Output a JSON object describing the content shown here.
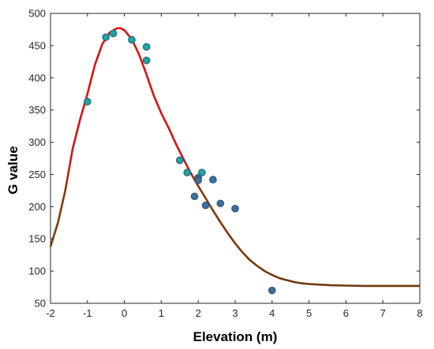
{
  "chart_data": {
    "type": "scatter",
    "xlabel": "Elevation (m)",
    "ylabel": "G value",
    "xlim": [
      -2,
      8
    ],
    "ylim": [
      50,
      500
    ],
    "xticks": [
      -2,
      -1,
      0,
      1,
      2,
      3,
      4,
      5,
      6,
      7,
      8
    ],
    "yticks": [
      50,
      100,
      150,
      200,
      250,
      300,
      350,
      400,
      450,
      500
    ],
    "grid": false,
    "legend": "none",
    "points": [
      {
        "x": -1.0,
        "y": 363
      },
      {
        "x": -0.5,
        "y": 463
      },
      {
        "x": -0.3,
        "y": 469
      },
      {
        "x": 0.2,
        "y": 459
      },
      {
        "x": 0.6,
        "y": 448
      },
      {
        "x": 0.6,
        "y": 427
      },
      {
        "x": 1.5,
        "y": 272
      },
      {
        "x": 1.7,
        "y": 253
      },
      {
        "x": 2.0,
        "y": 245
      },
      {
        "x": 2.0,
        "y": 241
      },
      {
        "x": 2.1,
        "y": 253
      },
      {
        "x": 2.4,
        "y": 242
      },
      {
        "x": 1.9,
        "y": 216
      },
      {
        "x": 2.2,
        "y": 202
      },
      {
        "x": 2.6,
        "y": 205
      },
      {
        "x": 3.0,
        "y": 197
      },
      {
        "x": 4.0,
        "y": 70
      }
    ],
    "fit_curve": {
      "x": [
        -2.0,
        -1.8,
        -1.6,
        -1.4,
        -1.2,
        -1.0,
        -0.8,
        -0.6,
        -0.4,
        -0.2,
        -0.1,
        0.0,
        0.2,
        0.4,
        0.6,
        0.8,
        1.0,
        1.2,
        1.4,
        1.6,
        1.8,
        2.0,
        2.2,
        2.4,
        2.6,
        2.8,
        3.0,
        3.2,
        3.4,
        3.6,
        3.8,
        4.0,
        4.2,
        4.4,
        4.6,
        4.8,
        5.0,
        5.3,
        5.6,
        6.0,
        6.5,
        7.0,
        7.5,
        8.0
      ],
      "y": [
        138,
        175,
        225,
        290,
        335,
        375,
        420,
        452,
        470,
        477,
        477,
        474,
        460,
        436,
        405,
        372,
        345,
        322,
        297,
        274,
        252,
        232,
        213,
        194,
        176,
        159,
        143,
        129,
        117,
        108,
        100,
        94,
        89,
        86,
        83,
        81,
        80,
        79,
        78,
        77.5,
        77,
        77,
        77,
        77
      ]
    },
    "colors": {
      "point_fill_top": "#1aa7a0",
      "point_fill_bottom": "#3b6f9c",
      "point_stroke": "#2f4f6f",
      "curve_top": "#e01010",
      "curve_bottom": "#6b3a0e",
      "axis": "#262626"
    }
  }
}
